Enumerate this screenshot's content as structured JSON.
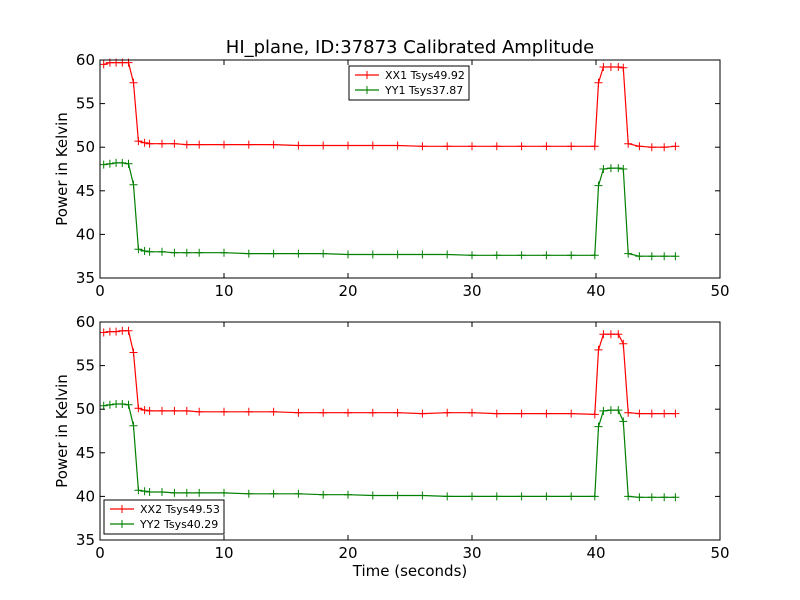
{
  "figure": {
    "title": "HI_plane, ID:37873 Calibrated Amplitude",
    "xlabel": "Time (seconds)"
  },
  "chart_data": [
    {
      "type": "line",
      "title": "HI_plane, ID:37873 Calibrated Amplitude",
      "xlabel": "",
      "ylabel": "Power in Kelvin",
      "xlim": [
        0,
        50
      ],
      "ylim": [
        35,
        60
      ],
      "xticks": [
        0,
        10,
        20,
        30,
        40,
        50
      ],
      "yticks": [
        35,
        40,
        45,
        50,
        55,
        60
      ],
      "grid": false,
      "legend_position": "top-center",
      "series": [
        {
          "name": "XX1 Tsys49.92",
          "color": "#ff0000",
          "x": [
            0.3,
            0.8,
            1.3,
            1.8,
            2.3,
            2.7,
            3.1,
            3.6,
            4.0,
            5.0,
            6.0,
            7.0,
            8.0,
            10.0,
            12.0,
            14.0,
            16.0,
            18.0,
            20.0,
            22.0,
            24.0,
            26.0,
            28.0,
            30.0,
            32.0,
            34.0,
            36.0,
            38.0,
            39.9,
            40.2,
            40.6,
            41.2,
            41.8,
            42.2,
            42.6,
            43.5,
            44.5,
            45.5,
            46.4
          ],
          "y": [
            59.5,
            59.7,
            59.7,
            59.7,
            59.7,
            57.4,
            50.7,
            50.5,
            50.4,
            50.4,
            50.4,
            50.3,
            50.3,
            50.3,
            50.3,
            50.3,
            50.2,
            50.2,
            50.2,
            50.2,
            50.2,
            50.1,
            50.1,
            50.1,
            50.1,
            50.1,
            50.1,
            50.1,
            50.1,
            57.4,
            59.2,
            59.2,
            59.2,
            59.1,
            50.4,
            50.1,
            50.0,
            50.0,
            50.1
          ]
        },
        {
          "name": "YY1 Tsys37.87",
          "color": "#008000",
          "x": [
            0.3,
            0.8,
            1.3,
            1.8,
            2.3,
            2.7,
            3.1,
            3.6,
            4.0,
            5.0,
            6.0,
            7.0,
            8.0,
            10.0,
            12.0,
            14.0,
            16.0,
            18.0,
            20.0,
            22.0,
            24.0,
            26.0,
            28.0,
            30.0,
            32.0,
            34.0,
            36.0,
            38.0,
            39.9,
            40.2,
            40.6,
            41.2,
            41.8,
            42.2,
            42.6,
            43.5,
            44.5,
            45.5,
            46.4
          ],
          "y": [
            48.0,
            48.1,
            48.2,
            48.2,
            48.1,
            45.7,
            38.3,
            38.1,
            38.0,
            38.0,
            37.9,
            37.9,
            37.9,
            37.9,
            37.8,
            37.8,
            37.8,
            37.8,
            37.7,
            37.7,
            37.7,
            37.7,
            37.7,
            37.6,
            37.6,
            37.6,
            37.6,
            37.6,
            37.6,
            45.6,
            47.5,
            47.6,
            47.6,
            47.5,
            37.8,
            37.5,
            37.5,
            37.5,
            37.5
          ]
        }
      ]
    },
    {
      "type": "line",
      "title": "",
      "xlabel": "Time (seconds)",
      "ylabel": "Power in Kelvin",
      "xlim": [
        0,
        50
      ],
      "ylim": [
        35,
        60
      ],
      "xticks": [
        0,
        10,
        20,
        30,
        40,
        50
      ],
      "yticks": [
        35,
        40,
        45,
        50,
        55,
        60
      ],
      "grid": false,
      "legend_position": "lower-left",
      "series": [
        {
          "name": "XX2 Tsys49.53",
          "color": "#ff0000",
          "x": [
            0.3,
            0.8,
            1.3,
            1.8,
            2.3,
            2.7,
            3.1,
            3.6,
            4.0,
            5.0,
            6.0,
            7.0,
            8.0,
            10.0,
            12.0,
            14.0,
            16.0,
            18.0,
            20.0,
            22.0,
            24.0,
            26.0,
            28.0,
            30.0,
            32.0,
            34.0,
            36.0,
            38.0,
            39.9,
            40.2,
            40.6,
            41.2,
            41.8,
            42.2,
            42.6,
            43.5,
            44.5,
            45.5,
            46.4
          ],
          "y": [
            58.8,
            58.9,
            58.9,
            59.0,
            59.0,
            56.5,
            50.1,
            49.9,
            49.8,
            49.8,
            49.8,
            49.8,
            49.7,
            49.7,
            49.7,
            49.7,
            49.6,
            49.6,
            49.6,
            49.6,
            49.6,
            49.5,
            49.6,
            49.6,
            49.5,
            49.5,
            49.5,
            49.5,
            49.4,
            56.8,
            58.6,
            58.6,
            58.6,
            57.5,
            49.6,
            49.5,
            49.5,
            49.5,
            49.5
          ]
        },
        {
          "name": "YY2 Tsys40.29",
          "color": "#008000",
          "x": [
            0.3,
            0.8,
            1.3,
            1.8,
            2.3,
            2.7,
            3.1,
            3.6,
            4.0,
            5.0,
            6.0,
            7.0,
            8.0,
            10.0,
            12.0,
            14.0,
            16.0,
            18.0,
            20.0,
            22.0,
            24.0,
            26.0,
            28.0,
            30.0,
            32.0,
            34.0,
            36.0,
            38.0,
            39.9,
            40.2,
            40.6,
            41.2,
            41.8,
            42.2,
            42.6,
            43.5,
            44.5,
            45.5,
            46.4
          ],
          "y": [
            50.4,
            50.5,
            50.6,
            50.6,
            50.5,
            48.1,
            40.7,
            40.6,
            40.5,
            40.5,
            40.4,
            40.4,
            40.4,
            40.4,
            40.3,
            40.3,
            40.3,
            40.2,
            40.2,
            40.1,
            40.1,
            40.1,
            40.0,
            40.0,
            40.0,
            40.0,
            40.0,
            40.0,
            40.0,
            48.0,
            49.8,
            49.9,
            49.9,
            48.6,
            40.0,
            39.9,
            39.9,
            39.9,
            39.9
          ]
        }
      ]
    }
  ]
}
